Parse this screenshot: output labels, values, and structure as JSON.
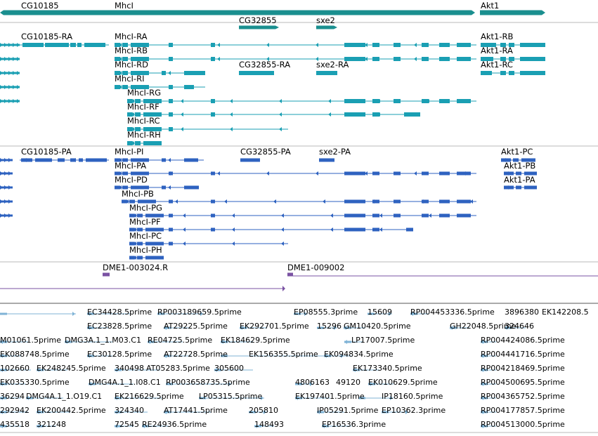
{
  "colors": {
    "gene": "#1a8f8f",
    "transcript": "#1a9fb3",
    "protein": "#2e62c0",
    "dme": "#7a52a3",
    "est": "#7fb3d6",
    "divider": "#b8b8b8",
    "divider_dark": "#555555"
  },
  "tracks": {
    "genes": [
      {
        "label": "CG10185",
        "strand": "-"
      },
      {
        "label": "MhcI",
        "strand": "+"
      },
      {
        "label": "CG32855",
        "strand": "+"
      },
      {
        "label": "sxe2",
        "strand": "+"
      },
      {
        "label": "Akt1",
        "strand": "+"
      }
    ],
    "transcripts": [
      {
        "label": "CG10185-RA"
      },
      {
        "label": "MhcI-RA"
      },
      {
        "label": "MhcI-RB"
      },
      {
        "label": "MhcI-RD"
      },
      {
        "label": "MhcI-RI"
      },
      {
        "label": "MhcI-RG"
      },
      {
        "label": "MhcI-RF"
      },
      {
        "label": "MhcI-RC"
      },
      {
        "label": "MhcI-RH"
      },
      {
        "label": "CG32855-RA"
      },
      {
        "label": "sxe2-RA"
      },
      {
        "label": "Akt1-RB"
      },
      {
        "label": "Akt1-RA"
      },
      {
        "label": "Akt1-RC"
      }
    ],
    "proteins": [
      {
        "label": "CG10185-PA"
      },
      {
        "label": "MhcI-PI"
      },
      {
        "label": "MhcI-PA"
      },
      {
        "label": "MhcI-PD"
      },
      {
        "label": "MhcI-PB"
      },
      {
        "label": "MhcI-PG"
      },
      {
        "label": "MhcI-PF"
      },
      {
        "label": "MhcI-PC"
      },
      {
        "label": "MhcI-PH"
      },
      {
        "label": "CG32855-PA"
      },
      {
        "label": "sxe2-PA"
      },
      {
        "label": "Akt1-PC"
      },
      {
        "label": "Akt1-PB"
      },
      {
        "label": "Akt1-PA"
      }
    ],
    "dme": [
      {
        "label": "DME1-003024.R"
      },
      {
        "label": "DME1-009002"
      }
    ],
    "ests": [
      "EC34428.5prime",
      "RP003189659.5prime",
      "EP08555.3prime",
      "15609",
      "RP004453336.5prime",
      "3896380",
      "EK142208.5",
      "EC23828.5prime",
      "AT29225.5prime",
      "EK292701.5prime",
      "15296",
      "GM10420.5prime",
      "GH22048.5prime",
      "324646",
      "M01061.5prime",
      "DMG3A.1_1.M03.C1",
      "RE04725.5prime",
      "EK184629.5prime",
      "LP17007.5prime",
      "RP004424086.5prime",
      "EK088748.5prime",
      "EC30128.5prime",
      "AT22728.5prime",
      "EK156355.5prime",
      "EK094834.5prime",
      "RP004441716.5prime",
      "102660",
      "EK248245.5prime",
      "340498",
      "AT05283.5prime",
      "305600",
      "EK173340.5prime",
      "RP004218469.5prime",
      "EK035330.5prime",
      "DMG4A.1_1.I08.C1",
      "RP003658735.5prime",
      "4806163",
      "49120",
      "EK010629.5prime",
      "RP004500695.5prime",
      "36294",
      "DMG4A.1_1.O19.C1",
      "EK216629.5prime",
      "LP05315.5prime",
      "EK197401.5prime",
      "IP18160.5prime",
      "RP004365752.5prime",
      "292942",
      "EK200442.5prime",
      "324340",
      "AT17441.5prime",
      "205810",
      "IP05291.5prime",
      "EP10362.3prime",
      "RP004177857.5prime",
      "435518",
      "321248",
      "72545",
      "RE24936.5prime",
      "148493",
      "EP16536.3prime",
      "RP004513000.5prime"
    ]
  }
}
